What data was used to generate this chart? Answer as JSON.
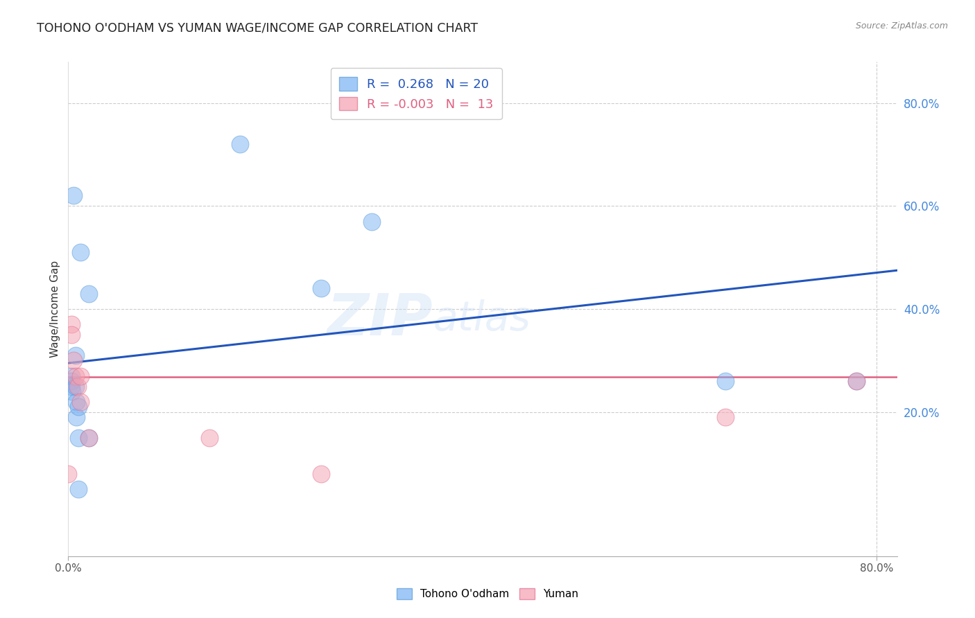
{
  "title": "TOHONO O'ODHAM VS YUMAN WAGE/INCOME GAP CORRELATION CHART",
  "source": "Source: ZipAtlas.com",
  "ylabel": "Wage/Income Gap",
  "xlim": [
    0.0,
    0.82
  ],
  "ylim": [
    -0.08,
    0.88
  ],
  "grid_color": "#cccccc",
  "background_color": "#ffffff",
  "watermark_line1": "ZIP",
  "watermark_line2": "atlas",
  "tohono_color": "#7ab3f5",
  "tohono_edge_color": "#5b9bd5",
  "yuman_color": "#f5a0b0",
  "yuman_edge_color": "#e07090",
  "tohono_R": 0.268,
  "tohono_N": 20,
  "yuman_R": -0.003,
  "yuman_N": 13,
  "tohono_x": [
    0.003,
    0.003,
    0.003,
    0.004,
    0.005,
    0.007,
    0.007,
    0.008,
    0.008,
    0.01,
    0.01,
    0.01,
    0.012,
    0.02,
    0.02,
    0.17,
    0.25,
    0.3,
    0.65,
    0.78
  ],
  "tohono_y": [
    0.27,
    0.26,
    0.25,
    0.24,
    0.62,
    0.31,
    0.25,
    0.22,
    0.19,
    0.21,
    0.15,
    0.05,
    0.51,
    0.43,
    0.15,
    0.72,
    0.44,
    0.57,
    0.26,
    0.26
  ],
  "yuman_x": [
    0.0,
    0.003,
    0.003,
    0.005,
    0.007,
    0.009,
    0.012,
    0.012,
    0.02,
    0.14,
    0.25,
    0.65,
    0.78
  ],
  "yuman_y": [
    0.08,
    0.37,
    0.35,
    0.3,
    0.27,
    0.25,
    0.27,
    0.22,
    0.15,
    0.15,
    0.08,
    0.19,
    0.26
  ],
  "blue_line_x": [
    0.0,
    0.82
  ],
  "blue_line_y": [
    0.295,
    0.475
  ],
  "pink_line_x": [
    0.0,
    0.82
  ],
  "pink_line_y": [
    0.268,
    0.268
  ]
}
